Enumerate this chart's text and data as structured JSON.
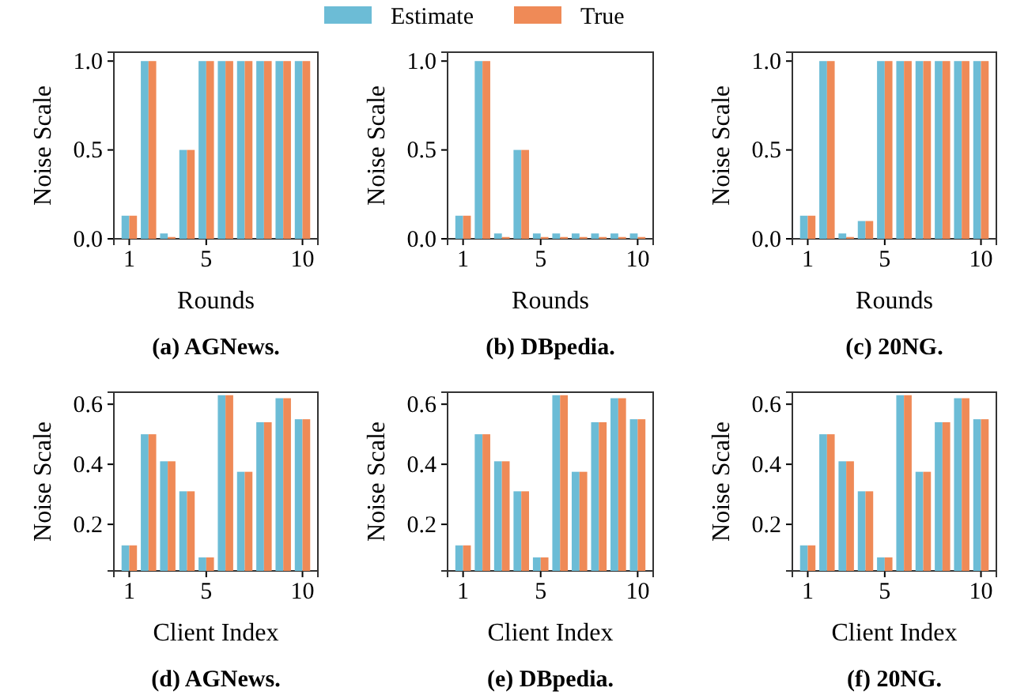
{
  "chart_data": [
    {
      "type": "bar",
      "title": "(a) AGNews.",
      "xlabel": "Rounds",
      "ylabel": "Noise Scale",
      "x": [
        1,
        2,
        3,
        4,
        5,
        6,
        7,
        8,
        9,
        10
      ],
      "xlim": [
        0.2,
        10.8
      ],
      "xticks": [
        1,
        5,
        10
      ],
      "ylim": [
        0,
        1.05
      ],
      "yticks": [
        {
          "value": 0,
          "label": "0.0"
        },
        {
          "value": 0.5,
          "label": "0.5"
        },
        {
          "value": 1,
          "label": "1.0"
        }
      ],
      "legend": "top",
      "series": [
        {
          "name": "Estimate",
          "color": "#6cbcd6",
          "values": [
            0.13,
            1,
            0.03,
            0.5,
            1,
            1,
            1,
            1,
            1,
            1
          ]
        },
        {
          "name": "True",
          "color": "#ef8a57",
          "values": [
            0.13,
            1,
            0.01,
            0.5,
            1,
            1,
            1,
            1,
            1,
            1
          ]
        }
      ]
    },
    {
      "type": "bar",
      "title": "(b) DBpedia.",
      "xlabel": "Rounds",
      "ylabel": "Noise Scale",
      "x": [
        1,
        2,
        3,
        4,
        5,
        6,
        7,
        8,
        9,
        10
      ],
      "xlim": [
        0.2,
        10.8
      ],
      "xticks": [
        1,
        5,
        10
      ],
      "ylim": [
        0,
        1.05
      ],
      "yticks": [
        {
          "value": 0,
          "label": "0.0"
        },
        {
          "value": 0.5,
          "label": "0.5"
        },
        {
          "value": 1,
          "label": "1.0"
        }
      ],
      "series": [
        {
          "color": "#6cbcd6",
          "values": [
            0.13,
            1,
            0.03,
            0.5,
            0.03,
            0.03,
            0.03,
            0.03,
            0.03,
            0.03
          ]
        },
        {
          "color": "#ef8a57",
          "values": [
            0.13,
            1,
            0.01,
            0.5,
            0.01,
            0.01,
            0.01,
            0.01,
            0.01,
            0.01
          ]
        }
      ]
    },
    {
      "type": "bar",
      "title": "(c) 20NG.",
      "xlabel": "Rounds",
      "ylabel": "Noise Scale",
      "x": [
        1,
        2,
        3,
        4,
        5,
        6,
        7,
        8,
        9,
        10
      ],
      "xlim": [
        0.2,
        10.8
      ],
      "xticks": [
        1,
        5,
        10
      ],
      "ylim": [
        0,
        1.05
      ],
      "yticks": [
        {
          "value": 0,
          "label": "0.0"
        },
        {
          "value": 0.5,
          "label": "0.5"
        },
        {
          "value": 1,
          "label": "1.0"
        }
      ],
      "series": [
        {
          "color": "#6cbcd6",
          "values": [
            0.13,
            1,
            0.03,
            0.1,
            1,
            1,
            1,
            1,
            1,
            1
          ]
        },
        {
          "color": "#ef8a57",
          "values": [
            0.13,
            1,
            0.01,
            0.1,
            1,
            1,
            1,
            1,
            1,
            1
          ]
        }
      ]
    },
    {
      "type": "bar",
      "title": "(d) AGNews.",
      "xlabel": "Client Index",
      "ylabel": "Noise Scale",
      "x": [
        1,
        2,
        3,
        4,
        5,
        6,
        7,
        8,
        9,
        10
      ],
      "xlim": [
        0.2,
        10.8
      ],
      "xticks": [
        1,
        5,
        10
      ],
      "ylim": [
        0.045,
        0.64
      ],
      "yticks": [
        0.2,
        0.4,
        0.6
      ],
      "series": [
        {
          "color": "#6cbcd6",
          "values": [
            0.13,
            0.5,
            0.41,
            0.31,
            0.09,
            0.63,
            0.375,
            0.54,
            0.62,
            0.55
          ]
        },
        {
          "color": "#ef8a57",
          "values": [
            0.13,
            0.5,
            0.41,
            0.31,
            0.09,
            0.63,
            0.375,
            0.54,
            0.62,
            0.55
          ]
        }
      ]
    },
    {
      "type": "bar",
      "title": "(e) DBpedia.",
      "xlabel": "Client Index",
      "ylabel": "Noise Scale",
      "x": [
        1,
        2,
        3,
        4,
        5,
        6,
        7,
        8,
        9,
        10
      ],
      "xlim": [
        0.2,
        10.8
      ],
      "xticks": [
        1,
        5,
        10
      ],
      "ylim": [
        0.045,
        0.64
      ],
      "yticks": [
        0.2,
        0.4,
        0.6
      ],
      "series": [
        {
          "color": "#6cbcd6",
          "values": [
            0.13,
            0.5,
            0.41,
            0.31,
            0.09,
            0.63,
            0.375,
            0.54,
            0.62,
            0.55
          ]
        },
        {
          "color": "#ef8a57",
          "values": [
            0.13,
            0.5,
            0.41,
            0.31,
            0.09,
            0.63,
            0.375,
            0.54,
            0.62,
            0.55
          ]
        }
      ]
    },
    {
      "type": "bar",
      "title": "(f) 20NG.",
      "xlabel": "Client Index",
      "ylabel": "Noise Scale",
      "x": [
        1,
        2,
        3,
        4,
        5,
        6,
        7,
        8,
        9,
        10
      ],
      "xlim": [
        0.2,
        10.8
      ],
      "xticks": [
        1,
        5,
        10
      ],
      "ylim": [
        0.045,
        0.64
      ],
      "yticks": [
        0.2,
        0.4,
        0.6
      ],
      "series": [
        {
          "color": "#6cbcd6",
          "values": [
            0.13,
            0.5,
            0.41,
            0.31,
            0.09,
            0.63,
            0.375,
            0.54,
            0.62,
            0.55
          ]
        },
        {
          "color": "#ef8a57",
          "values": [
            0.13,
            0.5,
            0.41,
            0.31,
            0.09,
            0.63,
            0.375,
            0.54,
            0.62,
            0.55
          ]
        }
      ]
    }
  ]
}
